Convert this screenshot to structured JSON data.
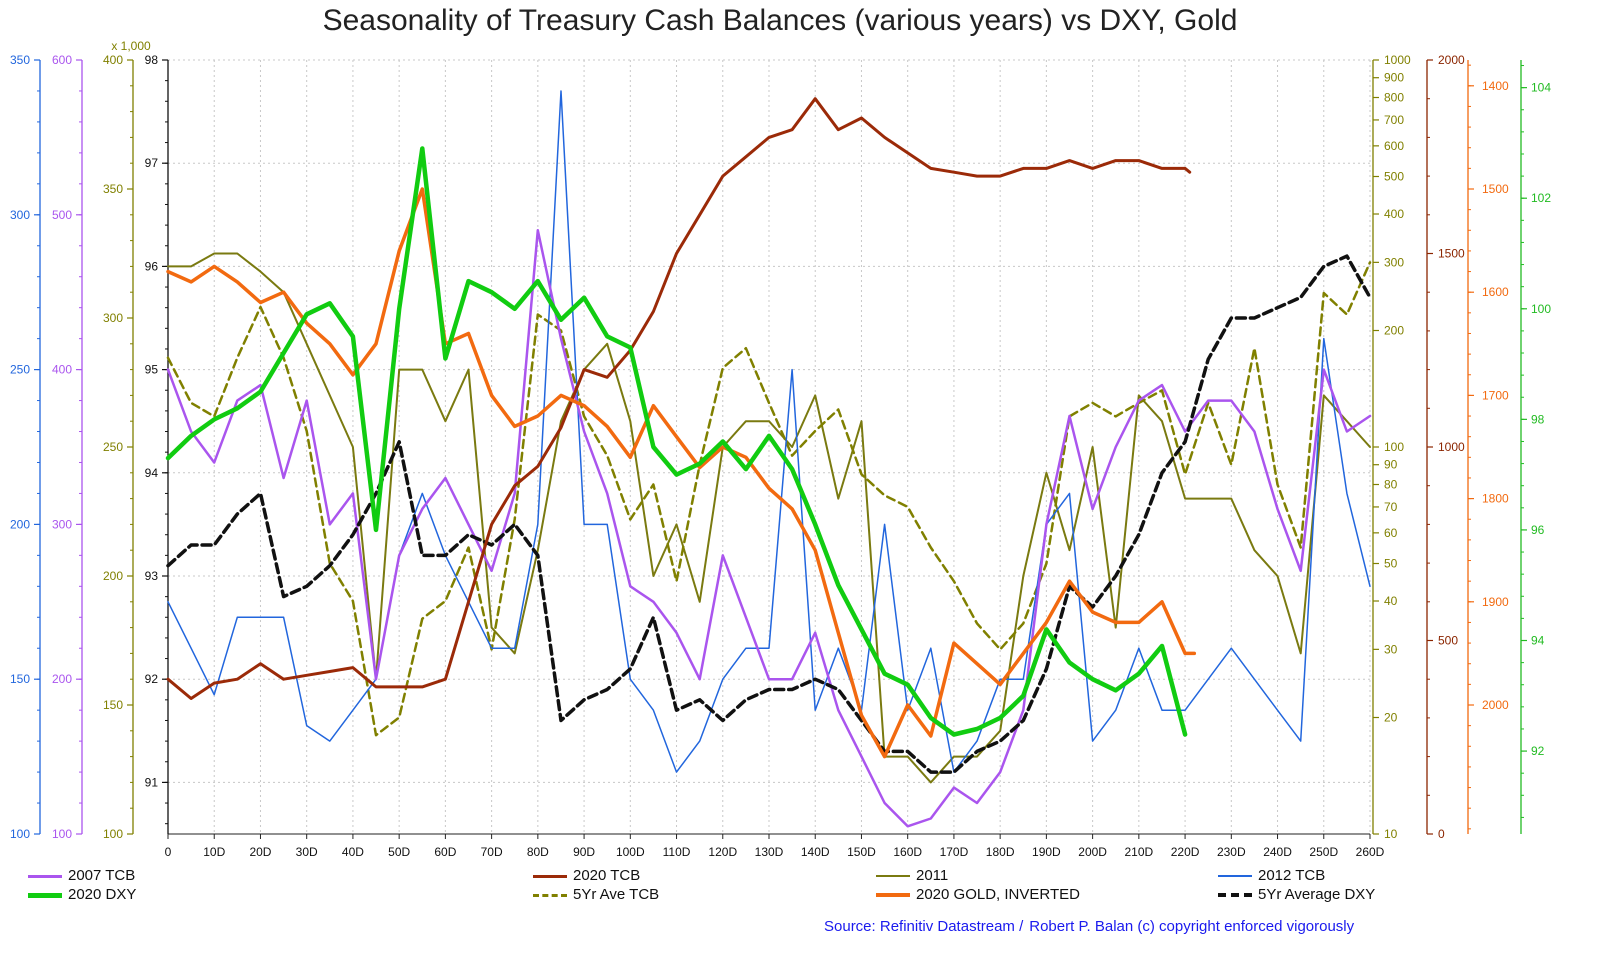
{
  "title": "Seasonality of Treasury Cash Balances (various years) vs DXY, Gold",
  "source": {
    "part1": "Source: Refinitiv Datastream /",
    "part2": "Robert P. Balan (c) copyright enforced vigorously"
  },
  "chart_data": {
    "type": "line",
    "title": "Seasonality of Treasury Cash Balances (various years) vs DXY, Gold",
    "x_range": [
      0,
      260
    ],
    "x_ticks": [
      "0",
      "10D",
      "20D",
      "30D",
      "40D",
      "50D",
      "60D",
      "70D",
      "80D",
      "90D",
      "100D",
      "110D",
      "120D",
      "130D",
      "140D",
      "150D",
      "160D",
      "170D",
      "180D",
      "190D",
      "200D",
      "210D",
      "220D",
      "230D",
      "240D",
      "250D",
      "260D"
    ],
    "axes": {
      "tcb2012": {
        "side": "left",
        "color": "#2266dd",
        "range": [
          100,
          350
        ],
        "ticks": [
          "100",
          "150",
          "200",
          "250",
          "300",
          "350"
        ]
      },
      "tcb2007": {
        "side": "left",
        "color": "#aa55ee",
        "range": [
          100,
          600
        ],
        "ticks": [
          "100",
          "200",
          "300",
          "400",
          "500",
          "600"
        ]
      },
      "tcb2011": {
        "side": "left",
        "color": "#808000",
        "unit": "x 1,000",
        "range": [
          100,
          400
        ],
        "ticks": [
          "100",
          "150",
          "200",
          "250",
          "300",
          "350",
          "400"
        ]
      },
      "dxy_avg": {
        "side": "left",
        "color": "#111111",
        "range": [
          90.5,
          98
        ],
        "ticks": [
          "91",
          "92",
          "93",
          "94",
          "95",
          "96",
          "97",
          "98"
        ]
      },
      "tcb_avg_log": {
        "side": "right",
        "color": "#808000",
        "scale": "log",
        "range": [
          10,
          1000
        ],
        "ticks": [
          "10",
          "20",
          "30",
          "40",
          "50",
          "60",
          "70",
          "80",
          "90",
          "100",
          "200",
          "300",
          "400",
          "500",
          "600",
          "700",
          "800",
          "900",
          "1000"
        ]
      },
      "tcb2020": {
        "side": "right",
        "color": "#8b2500",
        "range": [
          0,
          2000
        ],
        "ticks": [
          "0",
          "500",
          "1000",
          "1500",
          "2000"
        ]
      },
      "gold_inverted": {
        "side": "right",
        "color": "#f26a10",
        "inverted": true,
        "range": [
          2125,
          1375
        ],
        "ticks": [
          "1400",
          "1500",
          "1600",
          "1700",
          "1800",
          "1900",
          "2000"
        ]
      },
      "dxy2020": {
        "side": "right",
        "color": "#22bb22",
        "range": [
          90.5,
          104.5
        ],
        "ticks": [
          "92",
          "94",
          "96",
          "98",
          "100",
          "102",
          "104"
        ]
      }
    },
    "series": [
      {
        "name": "2007 TCB",
        "axis": "tcb2007",
        "color": "#aa55ee",
        "width": 2.5,
        "dash": "",
        "x": [
          0,
          5,
          10,
          15,
          20,
          25,
          30,
          35,
          40,
          45,
          50,
          55,
          60,
          65,
          70,
          75,
          80,
          85,
          90,
          95,
          100,
          105,
          110,
          115,
          120,
          125,
          130,
          135,
          140,
          145,
          150,
          155,
          160,
          165,
          170,
          175,
          180,
          185,
          190,
          195,
          200,
          205,
          210,
          215,
          220,
          225,
          230,
          235,
          240,
          245,
          250,
          255,
          260
        ],
        "values": [
          400,
          360,
          340,
          380,
          390,
          330,
          380,
          300,
          320,
          200,
          280,
          310,
          330,
          300,
          270,
          320,
          490,
          420,
          360,
          320,
          260,
          250,
          230,
          200,
          280,
          240,
          200,
          200,
          230,
          180,
          150,
          120,
          105,
          110,
          130,
          120,
          140,
          180,
          300,
          370,
          310,
          350,
          380,
          390,
          360,
          380,
          380,
          360,
          310,
          270,
          400,
          360,
          370
        ]
      },
      {
        "name": "2020 DXY",
        "axis": "dxy2020",
        "color": "#11cc11",
        "width": 4.5,
        "dash": "",
        "x": [
          0,
          5,
          10,
          15,
          20,
          25,
          30,
          35,
          40,
          45,
          50,
          55,
          60,
          65,
          70,
          75,
          80,
          85,
          90,
          95,
          100,
          105,
          110,
          115,
          120,
          125,
          130,
          135,
          140,
          145,
          150,
          155,
          160,
          165,
          170,
          175,
          180,
          185,
          190,
          195,
          200,
          205,
          210,
          215,
          220
        ],
        "values": [
          97.3,
          97.7,
          98.0,
          98.2,
          98.5,
          99.2,
          99.9,
          100.1,
          99.5,
          96.0,
          100.0,
          102.9,
          99.1,
          100.5,
          100.3,
          100.0,
          100.5,
          99.8,
          100.2,
          99.5,
          99.3,
          97.5,
          97.0,
          97.2,
          97.6,
          97.1,
          97.7,
          97.1,
          96.1,
          95.0,
          94.2,
          93.4,
          93.2,
          92.6,
          92.3,
          92.4,
          92.6,
          93.0,
          94.2,
          93.6,
          93.3,
          93.1,
          93.4,
          93.9,
          92.3
        ]
      },
      {
        "name": "2020 TCB",
        "axis": "tcb2020",
        "color": "#9b2a08",
        "width": 3,
        "dash": "",
        "x": [
          0,
          5,
          10,
          15,
          20,
          25,
          30,
          35,
          40,
          45,
          50,
          55,
          60,
          65,
          70,
          75,
          80,
          85,
          90,
          95,
          100,
          105,
          110,
          115,
          120,
          125,
          130,
          135,
          140,
          145,
          150,
          155,
          160,
          165,
          170,
          175,
          180,
          185,
          190,
          195,
          200,
          205,
          210,
          215,
          220,
          221
        ],
        "values": [
          400,
          350,
          390,
          400,
          440,
          400,
          410,
          420,
          430,
          380,
          380,
          380,
          400,
          600,
          800,
          900,
          950,
          1050,
          1200,
          1180,
          1250,
          1350,
          1500,
          1600,
          1700,
          1750,
          1800,
          1820,
          1900,
          1820,
          1850,
          1800,
          1760,
          1720,
          1710,
          1700,
          1700,
          1720,
          1720,
          1740,
          1720,
          1740,
          1740,
          1720,
          1720,
          1710
        ]
      },
      {
        "name": "5Yr Ave TCB",
        "axis": "tcb_avg_log",
        "color": "#808000",
        "width": 2.5,
        "dash": "8 5",
        "x": [
          0,
          5,
          10,
          15,
          20,
          25,
          30,
          35,
          40,
          45,
          50,
          55,
          60,
          65,
          70,
          75,
          80,
          85,
          90,
          95,
          100,
          105,
          110,
          115,
          120,
          125,
          130,
          135,
          140,
          145,
          150,
          155,
          160,
          165,
          170,
          175,
          180,
          185,
          190,
          195,
          200,
          205,
          210,
          215,
          220,
          225,
          230,
          235,
          240,
          245,
          250,
          255,
          260
        ],
        "values": [
          170,
          130,
          120,
          170,
          230,
          170,
          110,
          50,
          40,
          18,
          20,
          36,
          40,
          55,
          30,
          65,
          220,
          200,
          120,
          95,
          65,
          80,
          45,
          90,
          160,
          180,
          130,
          95,
          110,
          125,
          85,
          75,
          70,
          55,
          45,
          35,
          30,
          35,
          50,
          120,
          130,
          120,
          130,
          140,
          85,
          130,
          90,
          180,
          80,
          55,
          250,
          220,
          300
        ]
      },
      {
        "name": "2011",
        "axis": "tcb2011",
        "color": "#7a7a10",
        "width": 2,
        "dash": "",
        "x": [
          0,
          5,
          10,
          15,
          20,
          25,
          30,
          35,
          40,
          45,
          50,
          55,
          60,
          65,
          70,
          75,
          80,
          85,
          90,
          95,
          100,
          105,
          110,
          115,
          120,
          125,
          130,
          135,
          140,
          145,
          150,
          155,
          160,
          165,
          170,
          175,
          180,
          185,
          190,
          195,
          200,
          205,
          210,
          215,
          220,
          225,
          230,
          235,
          240,
          245,
          250,
          255,
          260
        ],
        "values": [
          320,
          320,
          325,
          325,
          318,
          310,
          290,
          270,
          250,
          160,
          280,
          280,
          260,
          280,
          180,
          170,
          210,
          260,
          280,
          290,
          260,
          200,
          220,
          190,
          250,
          260,
          260,
          250,
          270,
          230,
          260,
          130,
          130,
          120,
          130,
          130,
          140,
          200,
          240,
          210,
          250,
          180,
          270,
          260,
          230,
          230,
          230,
          210,
          200,
          170,
          270,
          260,
          250
        ]
      },
      {
        "name": "2020 GOLD, INVERTED",
        "axis": "gold_inverted",
        "color": "#f26a10",
        "width": 3.5,
        "dash": "",
        "x": [
          0,
          5,
          10,
          15,
          20,
          25,
          30,
          35,
          40,
          45,
          50,
          55,
          60,
          65,
          70,
          75,
          80,
          85,
          90,
          95,
          100,
          105,
          110,
          115,
          120,
          125,
          130,
          135,
          140,
          145,
          150,
          155,
          160,
          165,
          170,
          175,
          180,
          185,
          190,
          195,
          200,
          205,
          210,
          215,
          220,
          222
        ],
        "values": [
          1580,
          1590,
          1575,
          1590,
          1610,
          1600,
          1630,
          1650,
          1680,
          1650,
          1560,
          1500,
          1650,
          1640,
          1700,
          1730,
          1720,
          1700,
          1710,
          1730,
          1760,
          1710,
          1740,
          1770,
          1750,
          1760,
          1790,
          1810,
          1850,
          1930,
          2010,
          2050,
          2000,
          2030,
          1940,
          1960,
          1980,
          1950,
          1920,
          1880,
          1910,
          1920,
          1920,
          1900,
          1950,
          1950
        ]
      },
      {
        "name": "2012 TCB",
        "axis": "tcb2012",
        "color": "#2266dd",
        "width": 1.5,
        "dash": "",
        "x": [
          0,
          5,
          10,
          15,
          20,
          25,
          30,
          35,
          40,
          45,
          50,
          55,
          60,
          65,
          70,
          75,
          80,
          85,
          90,
          95,
          100,
          105,
          110,
          115,
          120,
          125,
          130,
          135,
          140,
          145,
          150,
          155,
          160,
          165,
          170,
          175,
          180,
          185,
          190,
          195,
          200,
          205,
          210,
          215,
          220,
          225,
          230,
          235,
          240,
          245,
          250,
          255,
          260
        ],
        "values": [
          175,
          160,
          145,
          170,
          170,
          170,
          135,
          130,
          140,
          150,
          190,
          210,
          190,
          175,
          160,
          160,
          200,
          340,
          200,
          200,
          150,
          140,
          120,
          130,
          150,
          160,
          160,
          250,
          140,
          160,
          140,
          200,
          140,
          160,
          120,
          130,
          150,
          150,
          200,
          210,
          130,
          140,
          160,
          140,
          140,
          150,
          160,
          150,
          140,
          130,
          260,
          210,
          180
        ]
      },
      {
        "name": "5Yr Average DXY",
        "axis": "dxy_avg",
        "color": "#111111",
        "width": 3.5,
        "dash": "9 5",
        "x": [
          0,
          5,
          10,
          15,
          20,
          25,
          30,
          35,
          40,
          45,
          50,
          55,
          60,
          65,
          70,
          75,
          80,
          85,
          90,
          95,
          100,
          105,
          110,
          115,
          120,
          125,
          130,
          135,
          140,
          145,
          150,
          155,
          160,
          165,
          170,
          175,
          180,
          185,
          190,
          195,
          200,
          205,
          210,
          215,
          220,
          225,
          230,
          235,
          240,
          245,
          250,
          255,
          260
        ],
        "values": [
          93.1,
          93.3,
          93.3,
          93.6,
          93.8,
          92.8,
          92.9,
          93.1,
          93.4,
          93.8,
          94.3,
          93.2,
          93.2,
          93.4,
          93.3,
          93.5,
          93.2,
          91.6,
          91.8,
          91.9,
          92.1,
          92.6,
          91.7,
          91.8,
          91.6,
          91.8,
          91.9,
          91.9,
          92.0,
          91.9,
          91.6,
          91.3,
          91.3,
          91.1,
          91.1,
          91.3,
          91.4,
          91.6,
          92.1,
          92.9,
          92.7,
          93.0,
          93.4,
          94.0,
          94.3,
          95.1,
          95.5,
          95.5,
          95.6,
          95.7,
          96.0,
          96.1,
          95.7
        ]
      }
    ],
    "legend": [
      {
        "label": "2007 TCB",
        "series": "2007 TCB"
      },
      {
        "label": "2020 TCB",
        "series": "2020 TCB"
      },
      {
        "label": "2011",
        "series": "2011"
      },
      {
        "label": "2012 TCB",
        "series": "2012 TCB"
      },
      {
        "label": "2020 DXY",
        "series": "2020 DXY"
      },
      {
        "label": "5Yr Ave TCB",
        "series": "5Yr Ave TCB"
      },
      {
        "label": "2020 GOLD, INVERTED",
        "series": "2020 GOLD, INVERTED"
      },
      {
        "label": "5Yr Average DXY",
        "series": "5Yr Average DXY"
      }
    ],
    "grid": true,
    "legend_placement": "bottom"
  }
}
